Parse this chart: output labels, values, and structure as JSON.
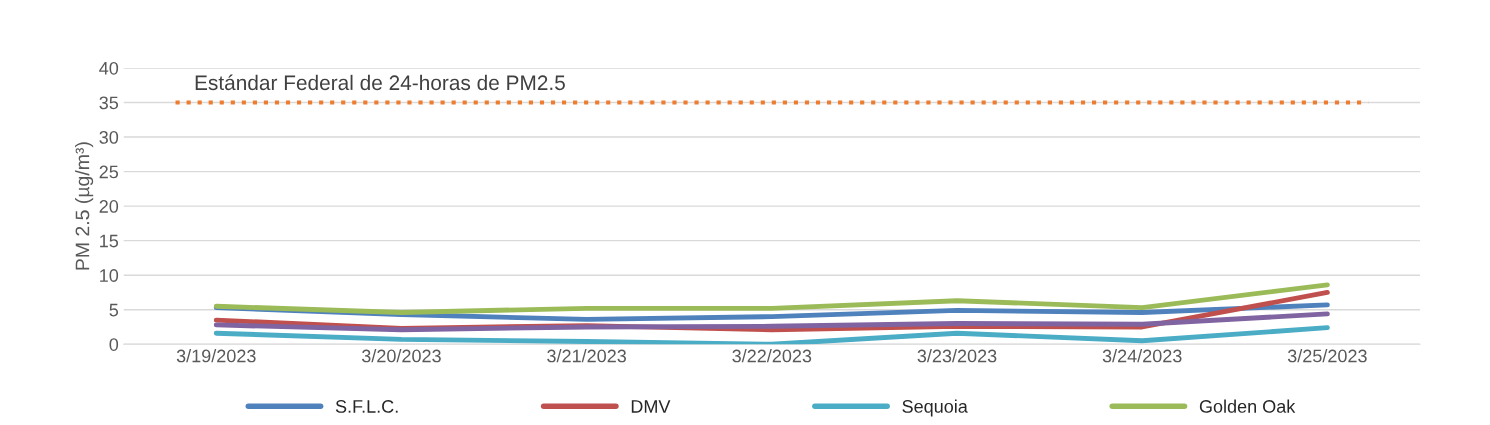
{
  "chart_data": {
    "type": "line",
    "ylabel": "PM 2.5 (µg/m³)",
    "categories": [
      "3/19/2023",
      "3/20/2023",
      "3/21/2023",
      "3/22/2023",
      "3/23/2023",
      "3/24/2023",
      "3/25/2023"
    ],
    "series": [
      {
        "name": "S.F.L.C.",
        "color": "#4f81bd",
        "values": [
          5.3,
          4.3,
          3.6,
          4.0,
          4.9,
          4.6,
          5.7
        ]
      },
      {
        "name": "DMV",
        "color": "#c0504d",
        "values": [
          3.5,
          2.3,
          2.7,
          2.1,
          2.6,
          2.5,
          7.5
        ]
      },
      {
        "color": "#8064a2",
        "values": [
          2.8,
          2.1,
          2.5,
          2.6,
          3.0,
          2.9,
          4.4
        ]
      },
      {
        "name": "Sequoia",
        "color": "#4bacc6",
        "values": [
          1.6,
          0.7,
          0.4,
          0.0,
          1.6,
          0.5,
          2.4
        ]
      },
      {
        "name": "Golden Oak",
        "color": "#9bbb59",
        "values": [
          5.5,
          4.6,
          5.2,
          5.2,
          6.3,
          5.3,
          8.6
        ]
      }
    ],
    "ref_lines": [
      {
        "axis": "y",
        "value": 35,
        "label": "Estándar Federal de 24-horas de PM2.5",
        "color": "#ed7d31",
        "line_style": "dotted"
      }
    ],
    "ylim": [
      0,
      40
    ],
    "yticks": [
      0,
      5,
      10,
      15,
      20,
      25,
      30,
      35,
      40
    ],
    "grid": "y",
    "legend": "bottom",
    "marker": "none",
    "line_style": "solid"
  }
}
